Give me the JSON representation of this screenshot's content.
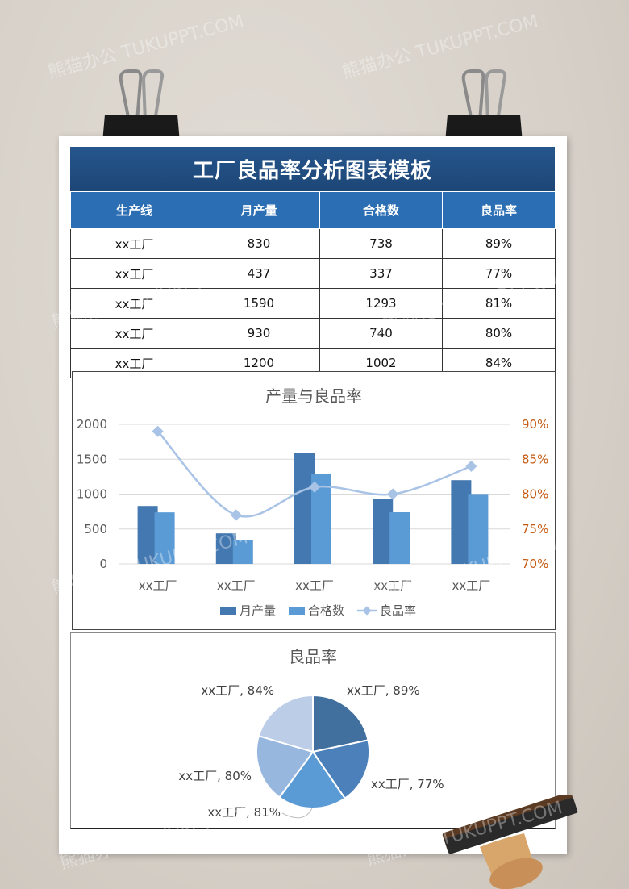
{
  "page": {
    "title": "工厂良品率分析图表模板",
    "watermark": "熊猫办公 TUKUPPT.COM"
  },
  "table": {
    "headers": [
      "生产线",
      "月产量",
      "合格数",
      "良品率"
    ],
    "rows": [
      [
        "xx工厂",
        "830",
        "738",
        "89%"
      ],
      [
        "xx工厂",
        "437",
        "337",
        "77%"
      ],
      [
        "xx工厂",
        "1590",
        "1293",
        "81%"
      ],
      [
        "xx工厂",
        "930",
        "740",
        "80%"
      ],
      [
        "xx工厂",
        "1200",
        "1002",
        "84%"
      ]
    ]
  },
  "colors": {
    "title_bg": "#1f4a7d",
    "header_bg": "#2c6eb3",
    "bar_production": "#4478b0",
    "bar_qualified": "#5b9bd5",
    "rate_line": "#a9c3e6",
    "right_axis_text": "#c55a11"
  },
  "chart_data": [
    {
      "type": "bar",
      "title": "产量与良品率",
      "categories": [
        "xx工厂",
        "xx工厂",
        "xx工厂",
        "xx工厂",
        "xx工厂"
      ],
      "series": [
        {
          "name": "月产量",
          "type": "bar",
          "values": [
            830,
            437,
            1590,
            930,
            1200
          ]
        },
        {
          "name": "合格数",
          "type": "bar",
          "values": [
            738,
            337,
            1293,
            740,
            1002
          ]
        },
        {
          "name": "良品率",
          "type": "line",
          "axis": "right",
          "values": [
            89,
            77,
            81,
            80,
            84
          ]
        }
      ],
      "ylim": [
        0,
        2000
      ],
      "yticks": [
        "0",
        "500",
        "1000",
        "1500",
        "2000"
      ],
      "y2lim": [
        70,
        90
      ],
      "y2ticks": [
        "70%",
        "75%",
        "80%",
        "85%",
        "90%"
      ],
      "legend": "bottom",
      "grid": true
    },
    {
      "type": "pie",
      "title": "良品率",
      "labels": [
        "xx工厂",
        "xx工厂",
        "xx工厂",
        "xx工厂",
        "xx工厂"
      ],
      "values": [
        89,
        77,
        81,
        80,
        84
      ],
      "data_labels": [
        "xx工厂, 89%",
        "xx工厂, 77%",
        "xx工厂, 81%",
        "xx工厂, 80%",
        "xx工厂, 84%"
      ],
      "colors": [
        "#41709f",
        "#4b80bb",
        "#5b9bd5",
        "#97b7df",
        "#bccde8"
      ]
    }
  ]
}
